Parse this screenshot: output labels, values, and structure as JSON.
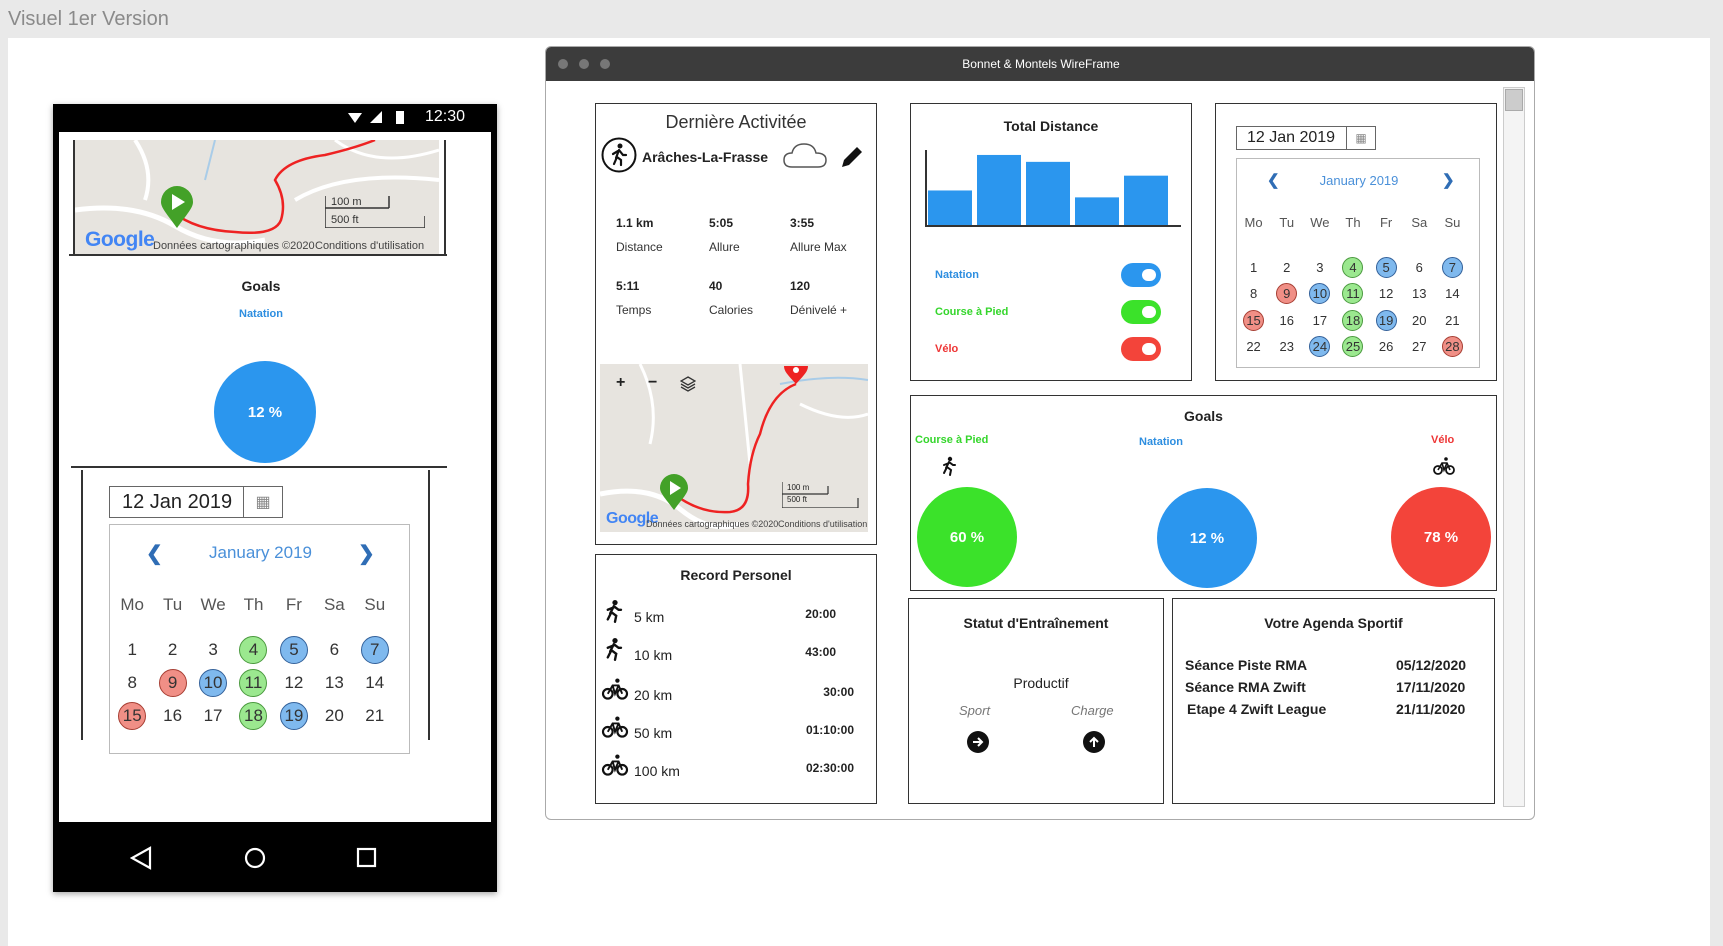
{
  "frame_title": "Visuel 1er Version",
  "colors": {
    "green": "#3be22a",
    "blue": "#2b96ee",
    "red": "#f3443a",
    "label_green": "#35d62c",
    "label_blue": "#2d8ee0",
    "label_red": "#ee3535"
  },
  "phone": {
    "time": "12:30",
    "map": {
      "scale_m": "100 m",
      "scale_ft": "500 ft",
      "google": "Google",
      "attribution": "Données cartographiques ©2020",
      "terms": "Conditions d'utilisation"
    },
    "goals": {
      "title": "Goals",
      "label": "Natation",
      "percent": "12 %"
    },
    "calendar": {
      "date": "12 Jan 2019",
      "month": "January 2019",
      "weekdays": [
        "Mo",
        "Tu",
        "We",
        "Th",
        "Fr",
        "Sa",
        "Su"
      ],
      "days": [
        "1",
        "2",
        "3",
        "4",
        "5",
        "6",
        "7",
        "8",
        "9",
        "10",
        "11",
        "12",
        "13",
        "14",
        "15",
        "16",
        "17",
        "18",
        "19",
        "20",
        "21"
      ],
      "marks": {
        "4": "g",
        "5": "b",
        "7": "b",
        "9": "r",
        "10": "b",
        "11": "g",
        "15": "r",
        "18": "g",
        "19": "b"
      }
    },
    "nav": [
      "back-icon",
      "home-icon",
      "recents-icon"
    ]
  },
  "window": {
    "title": "Bonnet & Montels WireFrame",
    "activity": {
      "title": "Dernière Activitée",
      "location": "Arâches-La-Frasse",
      "stats": [
        {
          "value": "1.1 km",
          "label": "Distance"
        },
        {
          "value": "5:05",
          "label": "Allure"
        },
        {
          "value": "3:55",
          "label": "Allure Max"
        },
        {
          "value": "5:11",
          "label": "Temps"
        },
        {
          "value": "40",
          "label": "Calories"
        },
        {
          "value": "120",
          "label": "Dénivelé +"
        }
      ],
      "map": {
        "scale_m": "100 m",
        "scale_ft": "500 ft",
        "google": "Google",
        "attribution": "Données cartographiques ©2020",
        "terms": "Conditions d'utilisation",
        "zoom_in": "+",
        "zoom_out": "−"
      }
    },
    "distance": {
      "title": "Total Distance",
      "toggles": [
        {
          "label": "Natation",
          "color": "#2b96ee",
          "label_color": "#2d8ee0",
          "on": true
        },
        {
          "label": "Course à Pied",
          "color": "#3be22a",
          "label_color": "#35d62c",
          "on": true
        },
        {
          "label": "Vélo",
          "color": "#f3443a",
          "label_color": "#ee3535",
          "on": true
        }
      ]
    },
    "chart_data": {
      "type": "bar",
      "title": "Total Distance",
      "categories": [
        "",
        "",
        "",
        "",
        "",
        ""
      ],
      "values": [
        35,
        71,
        64,
        28,
        50,
        0
      ],
      "xlabel": "",
      "ylabel": "",
      "ylim": [
        0,
        75
      ],
      "color": "#2b96ee",
      "grid": false
    },
    "calendar": {
      "date": "12 Jan 2019",
      "month": "January 2019",
      "weekdays": [
        "Mo",
        "Tu",
        "We",
        "Th",
        "Fr",
        "Sa",
        "Su"
      ],
      "days": [
        "1",
        "2",
        "3",
        "4",
        "5",
        "6",
        "7",
        "8",
        "9",
        "10",
        "11",
        "12",
        "13",
        "14",
        "15",
        "16",
        "17",
        "18",
        "19",
        "20",
        "21",
        "22",
        "23",
        "24",
        "25",
        "26",
        "27",
        "28"
      ],
      "marks": {
        "4": "g",
        "5": "b",
        "7": "b",
        "9": "r",
        "10": "b",
        "11": "g",
        "15": "r",
        "18": "g",
        "19": "b",
        "24": "b",
        "25": "g",
        "28": "r"
      }
    },
    "goals": {
      "title": "Goals",
      "items": [
        {
          "label": "Course à Pied",
          "percent": "60 %",
          "fill": 0.6,
          "icon": "running-icon"
        },
        {
          "label": "Natation",
          "percent": "12 %",
          "fill": 0.12,
          "icon": ""
        },
        {
          "label": "Vélo",
          "percent": "78 %",
          "fill": 0.78,
          "icon": "bicycle-icon"
        }
      ]
    },
    "records": {
      "title": "Record Personel",
      "items": [
        {
          "icon": "running-icon",
          "label": "5 km",
          "time": "20:00"
        },
        {
          "icon": "running-icon",
          "label": "10 km",
          "time": "43:00"
        },
        {
          "icon": "bicycle-icon",
          "label": "20 km",
          "time": "30:00"
        },
        {
          "icon": "bicycle-icon",
          "label": "50 km",
          "time": "01:10:00"
        },
        {
          "icon": "bicycle-icon",
          "label": "100 km",
          "time": "02:30:00"
        }
      ]
    },
    "training": {
      "title": "Statut d'Entraînement",
      "status": "Productif",
      "sport_label": "Sport",
      "charge_label": "Charge",
      "sport_icon": "arrow-right-icon",
      "charge_icon": "arrow-up-icon"
    },
    "agenda": {
      "title": "Votre Agenda Sportif",
      "items": [
        {
          "name": "Séance Piste RMA",
          "date": "05/12/2020"
        },
        {
          "name": "Séance RMA Zwift",
          "date": "17/11/2020"
        },
        {
          "name": "Etape 4 Zwift League",
          "date": "21/11/2020"
        }
      ]
    }
  }
}
